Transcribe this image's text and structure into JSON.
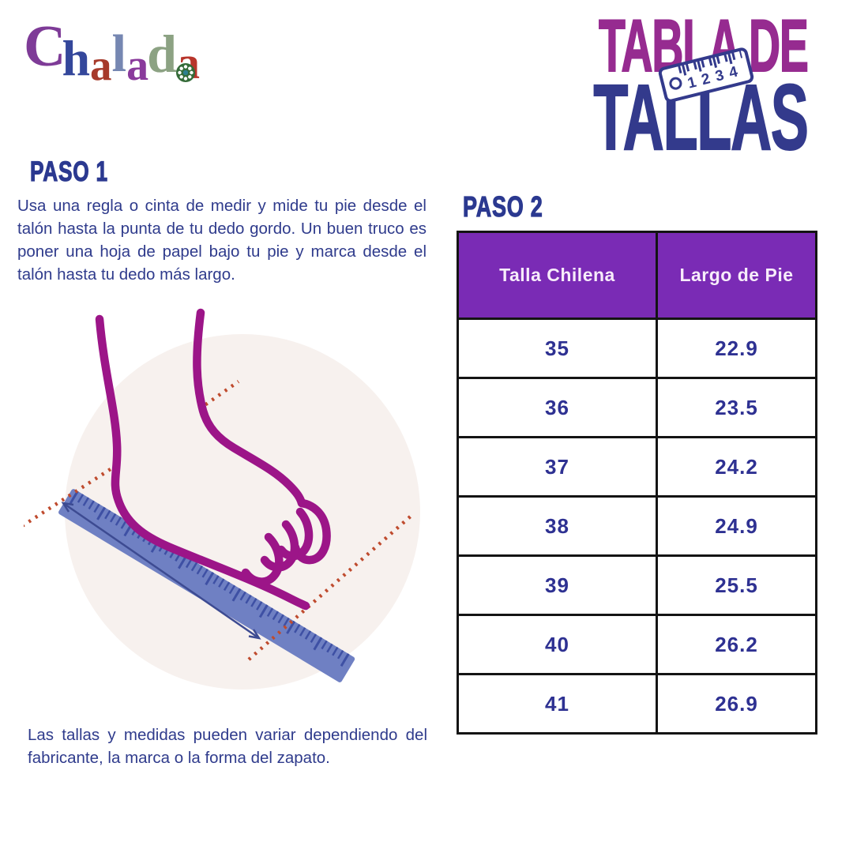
{
  "brand": {
    "name": "Chalada",
    "letters": [
      {
        "char": "C",
        "color": "#7E3B97"
      },
      {
        "char": "h",
        "color": "#34479B"
      },
      {
        "char": "a",
        "color": "#A63A2B"
      },
      {
        "char": "l",
        "color": "#7687B2"
      },
      {
        "char": "a",
        "color": "#8A3B9C"
      },
      {
        "char": "d",
        "color": "#8CA283"
      },
      {
        "char": "a",
        "color": "#B8352B"
      }
    ]
  },
  "title": {
    "line1": "TABLA DE",
    "line2": "TALLAS",
    "line1_color": "#962B90",
    "line2_color": "#333A8C",
    "ruler_numbers": [
      "1",
      "2",
      "3",
      "4"
    ]
  },
  "step1": {
    "heading": "PASO 1",
    "body": "Usa una regla o cinta de medir y mide tu pie desde el talón hasta la punta de tu dedo gordo. Un buen truco es poner una hoja de papel bajo tu pie y marca desde el talón hasta tu dedo más largo."
  },
  "step2": {
    "heading": "PASO 2",
    "table": {
      "headers": [
        "Talla Chilena",
        "Largo de Pie"
      ],
      "rows": [
        [
          "35",
          "22.9"
        ],
        [
          "36",
          "23.5"
        ],
        [
          "37",
          "24.2"
        ],
        [
          "38",
          "24.9"
        ],
        [
          "39",
          "25.5"
        ],
        [
          "40",
          "26.2"
        ],
        [
          "41",
          "26.9"
        ]
      ],
      "header_bg": "#7A2BB5",
      "value_color": "#2E3192",
      "border_color": "#141414"
    }
  },
  "footnote": "Las tallas y medidas pueden variar dependiendo del fabricante, la marca o la forma del zapato.",
  "illustration": {
    "description": "foot-profile-with-ruler",
    "colors": {
      "circle_bg": "#F7F1EE",
      "foot_outline": "#9C1588",
      "ruler_fill": "#6F80C3",
      "ruler_ticks": "#3E50A4",
      "dotted_lines": "#BF4B2E",
      "arrow": "#3D4B92"
    }
  }
}
